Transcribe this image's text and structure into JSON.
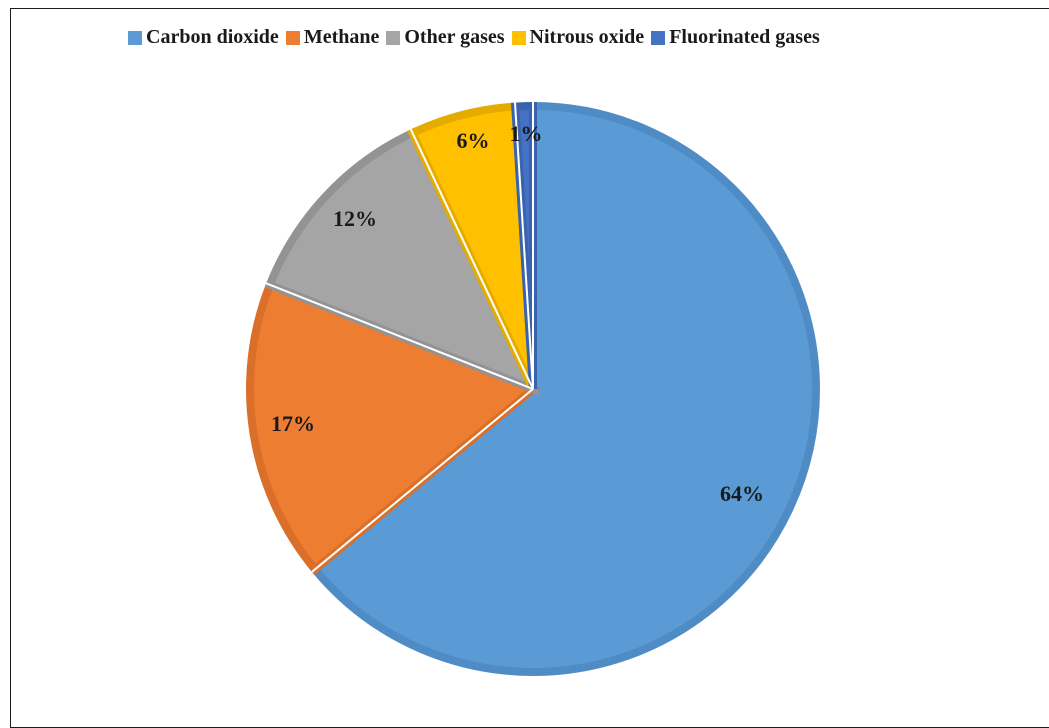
{
  "chart_data": {
    "type": "pie",
    "legend_position": "top",
    "slices": [
      {
        "label": "Carbon dioxide",
        "value": 64,
        "value_label": "64%",
        "color": "#5B9BD5",
        "border": "#4F8CC6"
      },
      {
        "label": "Methane",
        "value": 17,
        "value_label": "17%",
        "color": "#ED7D31",
        "border": "#D96F29"
      },
      {
        "label": "Other gases",
        "value": 12,
        "value_label": "12%",
        "color": "#A5A5A5",
        "border": "#939393"
      },
      {
        "label": "Nitrous oxide",
        "value": 6,
        "value_label": "6%",
        "color": "#FFC000",
        "border": "#E5AC00"
      },
      {
        "label": "Fluorinated gases",
        "value": 1,
        "value_label": "1%",
        "color": "#4472C4",
        "border": "#3A63AE"
      }
    ]
  }
}
